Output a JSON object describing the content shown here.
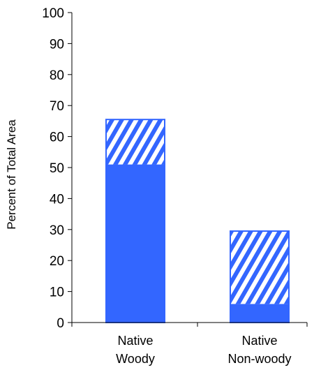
{
  "chart_data": {
    "type": "bar",
    "stacked": true,
    "categories": [
      [
        "Native",
        "Woody"
      ],
      [
        "Native",
        "Non-woody"
      ]
    ],
    "series": [
      {
        "values": [
          51,
          6
        ],
        "pattern": "solid"
      },
      {
        "values": [
          14.5,
          23.5
        ],
        "pattern": "diagonal-hatch"
      }
    ],
    "totals": [
      65.5,
      29.5
    ],
    "xlabel": "",
    "ylabel": "Percent of Total Area",
    "ylim": [
      0,
      100
    ],
    "yticks": [
      0,
      10,
      20,
      30,
      40,
      50,
      60,
      70,
      80,
      90,
      100
    ],
    "grid": false,
    "legend": "none",
    "colors": {
      "bar": "#3366FF",
      "hatch_line": "#FFFFFF",
      "axis": "#000000"
    }
  }
}
